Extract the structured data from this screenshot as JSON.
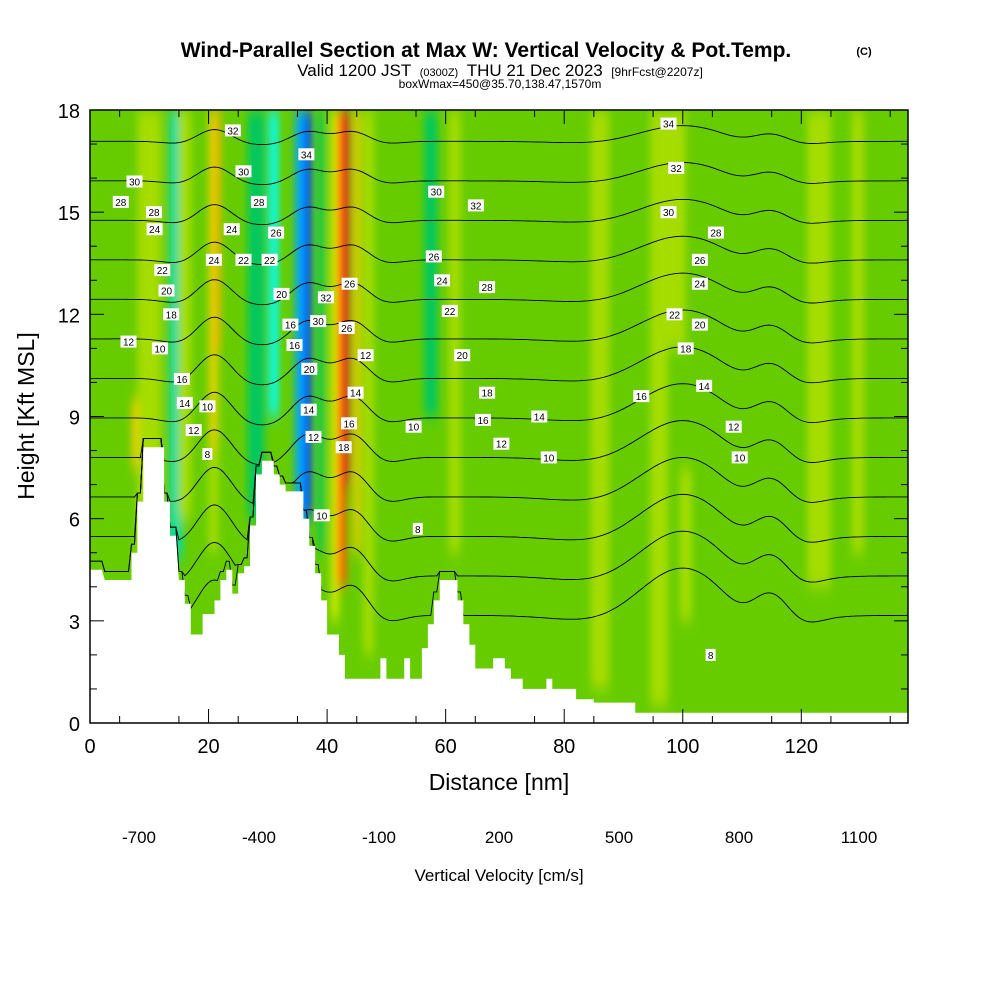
{
  "title": {
    "main": "Wind-Parallel Section at Max W: Vertical Velocity & Pot.Temp.",
    "copyright": "(C)",
    "valid_prefix": "Valid 1200 JST",
    "valid_utc": "(0300Z)",
    "valid_date": "THU 21 Dec 2023",
    "forecast": "[9hrFcst@2207z]",
    "box_info": "boxWmax=450@35.70,138.47,1570m"
  },
  "chart_data": {
    "type": "heatmap",
    "xlabel": "Distance [nm]",
    "ylabel": "Height [Kft MSL]",
    "xlim": [
      0,
      138
    ],
    "ylim": [
      0,
      18
    ],
    "x_ticks": [
      0,
      20,
      40,
      60,
      80,
      100,
      120
    ],
    "y_ticks": [
      0,
      3,
      6,
      9,
      12,
      15,
      18
    ],
    "colorbar": {
      "label": "Vertical Velocity [cm/s]",
      "tick_labels": [
        "-700",
        "-400",
        "-100",
        "200",
        "500",
        "800",
        "1100"
      ],
      "tick_values": [
        -700,
        -400,
        -100,
        200,
        500,
        800,
        1100
      ],
      "bins": [
        -700,
        -600,
        -500,
        -400,
        -300,
        -200,
        -100,
        0,
        100,
        200,
        300,
        400,
        500,
        600,
        700,
        800,
        900,
        1000,
        1100
      ],
      "colors": [
        "#0000ff",
        "#0055ff",
        "#00a5ff",
        "#00ffff",
        "#00ddaa",
        "#00c860",
        "#22bb22",
        "#66cc00",
        "#a6dd00",
        "#ddee00",
        "#ffcc00",
        "#ffaa00",
        "#ff8800",
        "#ff5500",
        "#ee1100",
        "#cc0022",
        "#990055",
        "#660088"
      ]
    },
    "background_w_cm_s": 0,
    "w_bands": [
      {
        "x": 8,
        "w": 1.8,
        "y0": 7.5,
        "y1": 9.5,
        "value": 300
      },
      {
        "x": 10,
        "w": 4,
        "y0": 4.5,
        "y1": 18,
        "value": 120
      },
      {
        "x": 14.5,
        "w": 2.2,
        "y0": 4.8,
        "y1": 18,
        "value": -300
      },
      {
        "x": 16,
        "w": 2.2,
        "y0": 6,
        "y1": 18,
        "value": 100
      },
      {
        "x": 20.8,
        "w": 1.6,
        "y0": 5,
        "y1": 18,
        "value": 140
      },
      {
        "x": 20.8,
        "w": 0.9,
        "y0": 8,
        "y1": 18,
        "value": 380
      },
      {
        "x": 21.5,
        "w": 0.6,
        "y0": 11,
        "y1": 18,
        "value": 480
      },
      {
        "x": 23.5,
        "w": 2.2,
        "y0": 6,
        "y1": 18,
        "value": 20
      },
      {
        "x": 28,
        "w": 2.8,
        "y0": 6,
        "y1": 18,
        "value": -120
      },
      {
        "x": 31,
        "w": 1.5,
        "y0": 9,
        "y1": 18,
        "value": -320
      },
      {
        "x": 35.5,
        "w": 1.8,
        "y0": 4,
        "y1": 18,
        "value": -450
      },
      {
        "x": 36.8,
        "w": 1.0,
        "y0": 6,
        "y1": 18,
        "value": -680
      },
      {
        "x": 39,
        "w": 1.0,
        "y0": 5,
        "y1": 18,
        "value": -200
      },
      {
        "x": 41.3,
        "w": 1.2,
        "y0": 3,
        "y1": 18,
        "value": 280
      },
      {
        "x": 42.5,
        "w": 1.4,
        "y0": 4,
        "y1": 18,
        "value": 620
      },
      {
        "x": 43.4,
        "w": 0.8,
        "y0": 7,
        "y1": 18,
        "value": 880
      },
      {
        "x": 45,
        "w": 1.0,
        "y0": 5,
        "y1": 18,
        "value": 350
      },
      {
        "x": 47,
        "w": 1.8,
        "y0": 2,
        "y1": 18,
        "value": 130
      },
      {
        "x": 51,
        "w": 2.5,
        "y0": 1,
        "y1": 18,
        "value": 60
      },
      {
        "x": 57.5,
        "w": 2.2,
        "y0": 9,
        "y1": 18,
        "value": -200
      },
      {
        "x": 61.5,
        "w": 2.0,
        "y0": 5,
        "y1": 18,
        "value": 110
      },
      {
        "x": 66,
        "w": 2.5,
        "y0": 2,
        "y1": 18,
        "value": 10
      },
      {
        "x": 73,
        "w": 4,
        "y0": 1,
        "y1": 18,
        "value": 80
      },
      {
        "x": 80,
        "w": 3,
        "y0": 1,
        "y1": 18,
        "value": 20
      },
      {
        "x": 87,
        "w": 5,
        "y0": 1,
        "y1": 18,
        "value": 110
      },
      {
        "x": 90,
        "w": 5,
        "y0": 1,
        "y1": 18,
        "value": 20
      },
      {
        "x": 96,
        "w": 3,
        "y0": 0.5,
        "y1": 18,
        "value": 110
      },
      {
        "x": 100.5,
        "w": 2.0,
        "y0": 3,
        "y1": 7.5,
        "value": 190
      },
      {
        "x": 99,
        "w": 3,
        "y0": 11,
        "y1": 18,
        "value": 120
      },
      {
        "x": 104,
        "w": 4,
        "y0": 8,
        "y1": 18,
        "value": 20
      },
      {
        "x": 113,
        "w": 5,
        "y0": 9,
        "y1": 18,
        "value": 20
      },
      {
        "x": 123,
        "w": 4,
        "y0": 4,
        "y1": 18,
        "value": 110
      },
      {
        "x": 130,
        "w": 3,
        "y0": 5,
        "y1": 18,
        "value": 110
      },
      {
        "x": 133,
        "w": 5,
        "y0": 1,
        "y1": 18,
        "value": 20
      }
    ],
    "terrain_kft": [
      [
        0,
        4.5
      ],
      [
        2,
        4.5
      ],
      [
        2.5,
        4.2
      ],
      [
        7,
        4.2
      ],
      [
        7,
        5.0
      ],
      [
        8,
        5.0
      ],
      [
        8,
        6.5
      ],
      [
        9,
        6.5
      ],
      [
        9,
        8.1
      ],
      [
        12.5,
        8.1
      ],
      [
        12.5,
        6.5
      ],
      [
        13.5,
        6.5
      ],
      [
        13.5,
        5.5
      ],
      [
        14.5,
        5.5
      ],
      [
        15,
        4.2
      ],
      [
        16,
        4.2
      ],
      [
        16,
        3.5
      ],
      [
        17,
        3.5
      ],
      [
        17,
        2.6
      ],
      [
        19,
        2.6
      ],
      [
        19,
        3.2
      ],
      [
        21,
        3.2
      ],
      [
        21,
        3.6
      ],
      [
        22,
        3.6
      ],
      [
        22,
        4.2
      ],
      [
        23,
        4.2
      ],
      [
        23,
        4.5
      ],
      [
        24,
        4.5
      ],
      [
        24,
        3.8
      ],
      [
        25,
        3.8
      ],
      [
        25,
        4.4
      ],
      [
        26,
        4.4
      ],
      [
        26,
        4.6
      ],
      [
        27,
        4.6
      ],
      [
        27,
        5.8
      ],
      [
        28,
        5.8
      ],
      [
        28,
        7.3
      ],
      [
        29,
        7.3
      ],
      [
        29,
        7.7
      ],
      [
        31,
        7.7
      ],
      [
        31,
        7.3
      ],
      [
        32,
        7.3
      ],
      [
        32,
        7.0
      ],
      [
        33,
        7.0
      ],
      [
        33,
        6.8
      ],
      [
        36,
        6.8
      ],
      [
        36,
        6.0
      ],
      [
        37,
        6.0
      ],
      [
        37,
        5.2
      ],
      [
        38,
        5.2
      ],
      [
        38,
        4.4
      ],
      [
        39,
        4.4
      ],
      [
        39,
        3.6
      ],
      [
        40,
        3.6
      ],
      [
        40,
        2.6
      ],
      [
        42,
        2.6
      ],
      [
        42,
        2.0
      ],
      [
        43,
        2.0
      ],
      [
        43,
        1.3
      ],
      [
        49,
        1.3
      ],
      [
        49,
        1.9
      ],
      [
        50,
        1.9
      ],
      [
        50,
        1.3
      ],
      [
        53,
        1.3
      ],
      [
        53,
        1.9
      ],
      [
        54,
        1.9
      ],
      [
        54,
        1.3
      ],
      [
        56,
        1.3
      ],
      [
        56,
        2.2
      ],
      [
        57,
        2.2
      ],
      [
        57,
        2.9
      ],
      [
        58,
        2.9
      ],
      [
        58,
        3.6
      ],
      [
        59,
        3.6
      ],
      [
        59,
        4.2
      ],
      [
        62,
        4.2
      ],
      [
        62,
        3.6
      ],
      [
        63,
        3.6
      ],
      [
        63,
        2.9
      ],
      [
        64,
        2.9
      ],
      [
        64,
        2.3
      ],
      [
        65,
        2.3
      ],
      [
        65,
        1.6
      ],
      [
        68,
        1.6
      ],
      [
        68,
        1.9
      ],
      [
        70,
        1.9
      ],
      [
        70,
        1.6
      ],
      [
        71,
        1.6
      ],
      [
        71,
        1.3
      ],
      [
        73,
        1.3
      ],
      [
        73,
        1.0
      ],
      [
        77,
        1.0
      ],
      [
        77,
        1.3
      ],
      [
        78,
        1.3
      ],
      [
        78,
        1.0
      ],
      [
        82,
        1.0
      ],
      [
        82,
        0.7
      ],
      [
        85,
        0.7
      ],
      [
        85,
        0.6
      ],
      [
        92,
        0.6
      ],
      [
        92,
        0.3
      ],
      [
        138,
        0.3
      ]
    ],
    "theta_contours": {
      "levels": [
        8,
        10,
        12,
        14,
        16,
        18,
        20,
        22,
        24,
        26,
        28,
        30,
        32,
        34,
        36
      ],
      "wave_centers": [
        21,
        37,
        44,
        100,
        115
      ],
      "labels": [
        {
          "text": "30",
          "x": 7.5,
          "y": 15.9
        },
        {
          "text": "28",
          "x": 5.2,
          "y": 15.3
        },
        {
          "text": "28",
          "x": 10.8,
          "y": 15.0
        },
        {
          "text": "24",
          "x": 10.9,
          "y": 14.5
        },
        {
          "text": "22",
          "x": 12.2,
          "y": 13.3
        },
        {
          "text": "20",
          "x": 12.9,
          "y": 12.7
        },
        {
          "text": "18",
          "x": 13.7,
          "y": 12.0
        },
        {
          "text": "12",
          "x": 6.5,
          "y": 11.2
        },
        {
          "text": "10",
          "x": 11.8,
          "y": 11.0
        },
        {
          "text": "16",
          "x": 15.5,
          "y": 10.1
        },
        {
          "text": "14",
          "x": 16.0,
          "y": 9.4
        },
        {
          "text": "12",
          "x": 17.5,
          "y": 8.6
        },
        {
          "text": "10",
          "x": 19.8,
          "y": 9.3
        },
        {
          "text": "8",
          "x": 19.8,
          "y": 7.9
        },
        {
          "text": "24",
          "x": 20.9,
          "y": 13.6
        },
        {
          "text": "24",
          "x": 23.9,
          "y": 14.5
        },
        {
          "text": "22",
          "x": 25.9,
          "y": 13.6
        },
        {
          "text": "22",
          "x": 30.3,
          "y": 13.6
        },
        {
          "text": "32",
          "x": 24.1,
          "y": 17.4
        },
        {
          "text": "30",
          "x": 25.9,
          "y": 16.2
        },
        {
          "text": "28",
          "x": 28.5,
          "y": 15.3
        },
        {
          "text": "26",
          "x": 31.4,
          "y": 14.4
        },
        {
          "text": "20",
          "x": 32.3,
          "y": 12.6
        },
        {
          "text": "16",
          "x": 33.8,
          "y": 11.7
        },
        {
          "text": "16",
          "x": 34.5,
          "y": 11.1
        },
        {
          "text": "34",
          "x": 36.5,
          "y": 16.7
        },
        {
          "text": "32",
          "x": 39.8,
          "y": 12.5
        },
        {
          "text": "30",
          "x": 38.5,
          "y": 11.8
        },
        {
          "text": "20",
          "x": 37.0,
          "y": 10.4
        },
        {
          "text": "14",
          "x": 36.9,
          "y": 9.2
        },
        {
          "text": "12",
          "x": 37.7,
          "y": 8.4
        },
        {
          "text": "10",
          "x": 39.1,
          "y": 6.1
        },
        {
          "text": "26",
          "x": 43.8,
          "y": 12.9
        },
        {
          "text": "26",
          "x": 43.3,
          "y": 11.6
        },
        {
          "text": "18",
          "x": 42.8,
          "y": 8.1
        },
        {
          "text": "16",
          "x": 43.7,
          "y": 8.8
        },
        {
          "text": "14",
          "x": 44.8,
          "y": 9.7
        },
        {
          "text": "12",
          "x": 46.5,
          "y": 10.8
        },
        {
          "text": "30",
          "x": 58.4,
          "y": 15.6
        },
        {
          "text": "32",
          "x": 65.1,
          "y": 15.2
        },
        {
          "text": "26",
          "x": 58.0,
          "y": 13.7
        },
        {
          "text": "24",
          "x": 59.4,
          "y": 13.0
        },
        {
          "text": "22",
          "x": 60.7,
          "y": 12.1
        },
        {
          "text": "28",
          "x": 67.0,
          "y": 12.8
        },
        {
          "text": "20",
          "x": 62.8,
          "y": 10.8
        },
        {
          "text": "18",
          "x": 67.0,
          "y": 9.7
        },
        {
          "text": "16",
          "x": 66.3,
          "y": 8.9
        },
        {
          "text": "14",
          "x": 75.8,
          "y": 9.0
        },
        {
          "text": "12",
          "x": 69.4,
          "y": 8.2
        },
        {
          "text": "10",
          "x": 54.6,
          "y": 8.7
        },
        {
          "text": "10",
          "x": 77.4,
          "y": 7.8
        },
        {
          "text": "8",
          "x": 55.3,
          "y": 5.7
        },
        {
          "text": "34",
          "x": 97.6,
          "y": 17.6
        },
        {
          "text": "32",
          "x": 98.9,
          "y": 16.3
        },
        {
          "text": "30",
          "x": 97.6,
          "y": 15.0
        },
        {
          "text": "28",
          "x": 105.6,
          "y": 14.4
        },
        {
          "text": "26",
          "x": 102.9,
          "y": 13.6
        },
        {
          "text": "24",
          "x": 102.9,
          "y": 12.9
        },
        {
          "text": "22",
          "x": 98.6,
          "y": 12.0
        },
        {
          "text": "20",
          "x": 102.9,
          "y": 11.7
        },
        {
          "text": "18",
          "x": 100.5,
          "y": 11.0
        },
        {
          "text": "16",
          "x": 93.0,
          "y": 9.6
        },
        {
          "text": "14",
          "x": 103.6,
          "y": 9.9
        },
        {
          "text": "12",
          "x": 108.6,
          "y": 8.7
        },
        {
          "text": "10",
          "x": 109.6,
          "y": 7.8
        },
        {
          "text": "8",
          "x": 104.7,
          "y": 2.0
        }
      ]
    }
  }
}
